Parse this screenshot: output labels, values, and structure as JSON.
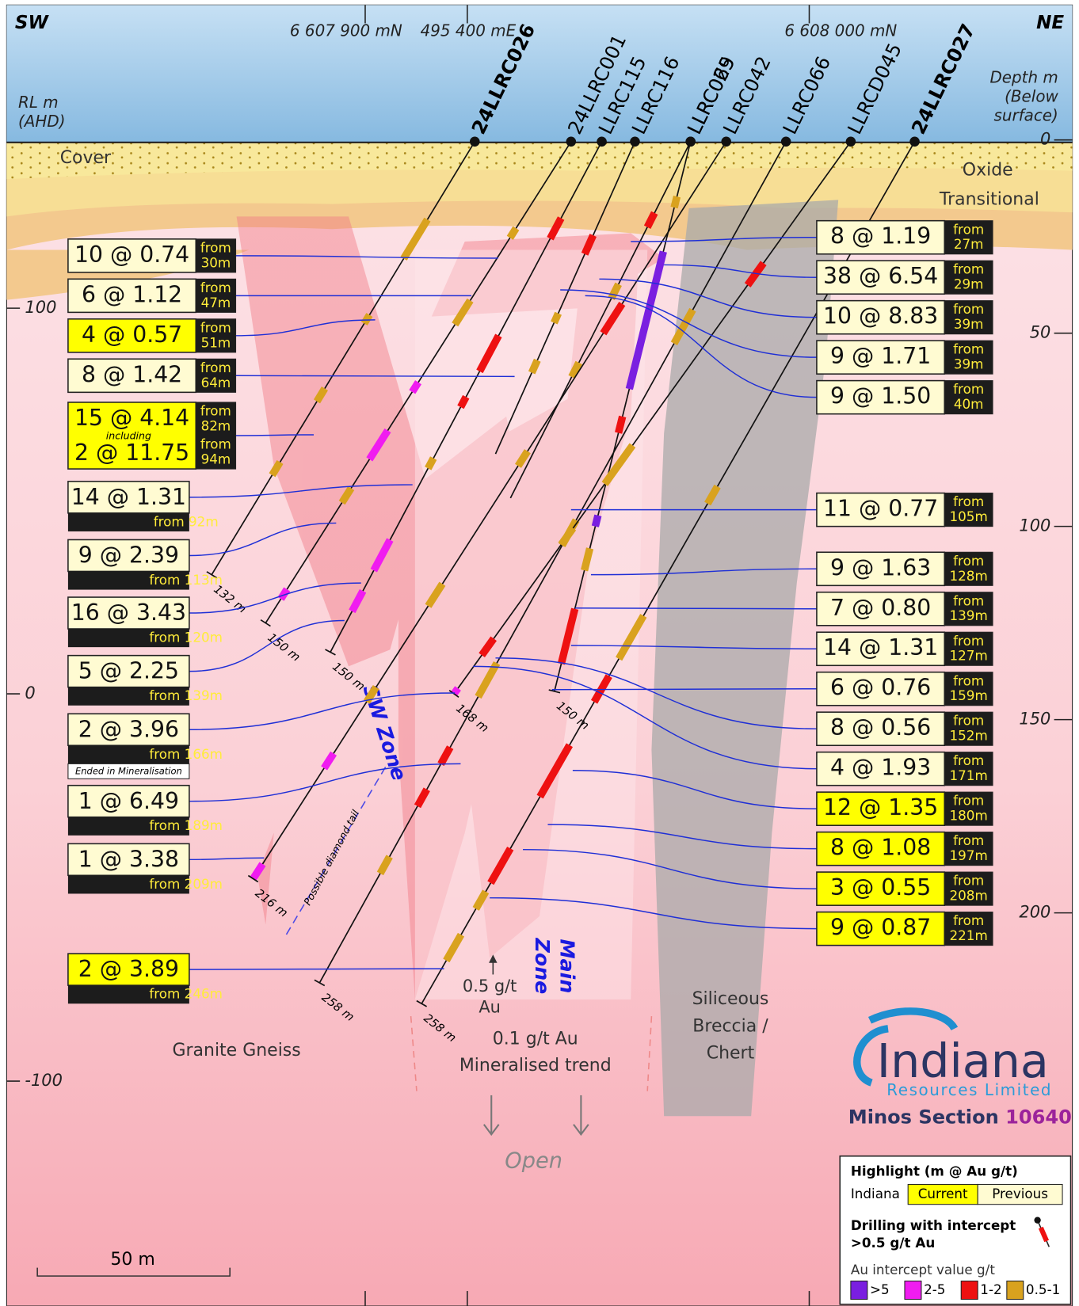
{
  "header": {
    "sw": "SW",
    "ne": "NE",
    "northing_left": "6 607 900 mN",
    "easting": "495 400 mE",
    "northing_right": "6 608 000 mN",
    "rl_label": [
      "RL m",
      "(AHD)"
    ],
    "depth_label": [
      "Depth m",
      "(Below",
      "surface)"
    ]
  },
  "holes": [
    {
      "name": "24LLRC026",
      "end": "132 m"
    },
    {
      "name": "24LLRC001",
      "end": "150 m"
    },
    {
      "name": "LLRC115",
      "end": "150 m"
    },
    {
      "name": "LLRC116"
    },
    {
      "name": "LLRC029",
      "end": "150 m"
    },
    {
      "name": "LLRC065"
    },
    {
      "name": "LLRC042",
      "end": "216 m"
    },
    {
      "name": "LLRC066",
      "end": "258 m"
    },
    {
      "name": "LLRCD045",
      "end": "168 m"
    },
    {
      "name": "24LLRC027",
      "end": "258 m"
    }
  ],
  "rl_ticks": [
    "100",
    "0",
    "-100"
  ],
  "depth_ticks": [
    "0",
    "50",
    "100",
    "150",
    "200"
  ],
  "layers": {
    "cover": "Cover",
    "oxide": "Oxide",
    "transitional": "Transitional"
  },
  "intercepts_left": [
    {
      "value": "10 @ 0.74",
      "from": "from",
      "depth": "30m"
    },
    {
      "value": "6 @ 1.12",
      "from": "from",
      "depth": "47m"
    },
    {
      "value": "4 @ 0.57",
      "from": "from",
      "depth": "51m",
      "current": true
    },
    {
      "value": "8 @ 1.42",
      "from": "from",
      "depth": "64m"
    },
    {
      "value": "15 @ 4.14",
      "from": "from",
      "depth": "82m",
      "including": "including",
      "value2": "2 @ 11.75",
      "from2": "from",
      "depth2": "94m",
      "current": true
    },
    {
      "value": "14 @ 1.31",
      "from": "from",
      "depth": "92m"
    },
    {
      "value": "9 @ 2.39",
      "from": "from",
      "depth": "113m"
    },
    {
      "value": "16 @ 3.43",
      "from": "from",
      "depth": "120m"
    },
    {
      "value": "5 @ 2.25",
      "from": "from",
      "depth": "139m"
    },
    {
      "value": "2 @ 3.96",
      "from": "from",
      "depth": "166m",
      "note": "Ended in Mineralisation"
    },
    {
      "value": "1 @ 6.49",
      "from": "from",
      "depth": "189m"
    },
    {
      "value": "1 @ 3.38",
      "from": "from",
      "depth": "209m"
    },
    {
      "value": "2 @ 3.89",
      "from": "from",
      "depth": "246m",
      "current": true
    }
  ],
  "intercepts_right": [
    {
      "value": "8 @ 1.19",
      "from": "from",
      "depth": "27m"
    },
    {
      "value": "38 @ 6.54",
      "from": "from",
      "depth": "29m"
    },
    {
      "value": "10 @ 8.83",
      "from": "from",
      "depth": "39m"
    },
    {
      "value": "9 @ 1.71",
      "from": "from",
      "depth": "39m"
    },
    {
      "value": "9 @ 1.50",
      "from": "from",
      "depth": "40m"
    },
    {
      "value": "11 @ 0.77",
      "from": "from",
      "depth": "105m"
    },
    {
      "value": "9 @ 1.63",
      "from": "from",
      "depth": "128m"
    },
    {
      "value": "7 @ 0.80",
      "from": "from",
      "depth": "139m"
    },
    {
      "value": "14 @ 1.31",
      "from": "from",
      "depth": "127m"
    },
    {
      "value": "6 @ 0.76",
      "from": "from",
      "depth": "159m"
    },
    {
      "value": "8 @ 0.56",
      "from": "from",
      "depth": "152m"
    },
    {
      "value": "4 @ 1.93",
      "from": "from",
      "depth": "171m"
    },
    {
      "value": "12 @ 1.35",
      "from": "from",
      "depth": "180m",
      "current": true
    },
    {
      "value": "8 @ 1.08",
      "from": "from",
      "depth": "197m",
      "current": true
    },
    {
      "value": "3 @ 0.55",
      "from": "from",
      "depth": "208m",
      "current": true
    },
    {
      "value": "9 @ 0.87",
      "from": "from",
      "depth": "221m",
      "current": true
    }
  ],
  "labels": {
    "sw_zone": "SW Zone",
    "main_zone": [
      "Main",
      "Zone"
    ],
    "diamond_tail": "Possible diamond tail",
    "grade_05": [
      "0.5 g/t",
      "Au"
    ],
    "trend": [
      "0.1 g/t Au",
      "Mineralised trend"
    ],
    "breccia": [
      "Siliceous",
      "Breccia /",
      "Chert"
    ],
    "granite": "Granite Gneiss",
    "open": "Open",
    "scale": "50 m"
  },
  "logo": {
    "name": "Indiana",
    "sub": "Resources Limited",
    "section": "Minos Section",
    "number": "10640"
  },
  "legend": {
    "title": "Highlight (m @ Au g/t)",
    "company": "Indiana",
    "current": "Current",
    "previous": "Previous",
    "drilling": [
      "Drilling with intercept",
      ">0.5 g/t Au"
    ],
    "scale_title": "Au intercept value g/t",
    "classes": [
      ">5",
      "2-5",
      "1-2",
      "0.5-1"
    ]
  }
}
